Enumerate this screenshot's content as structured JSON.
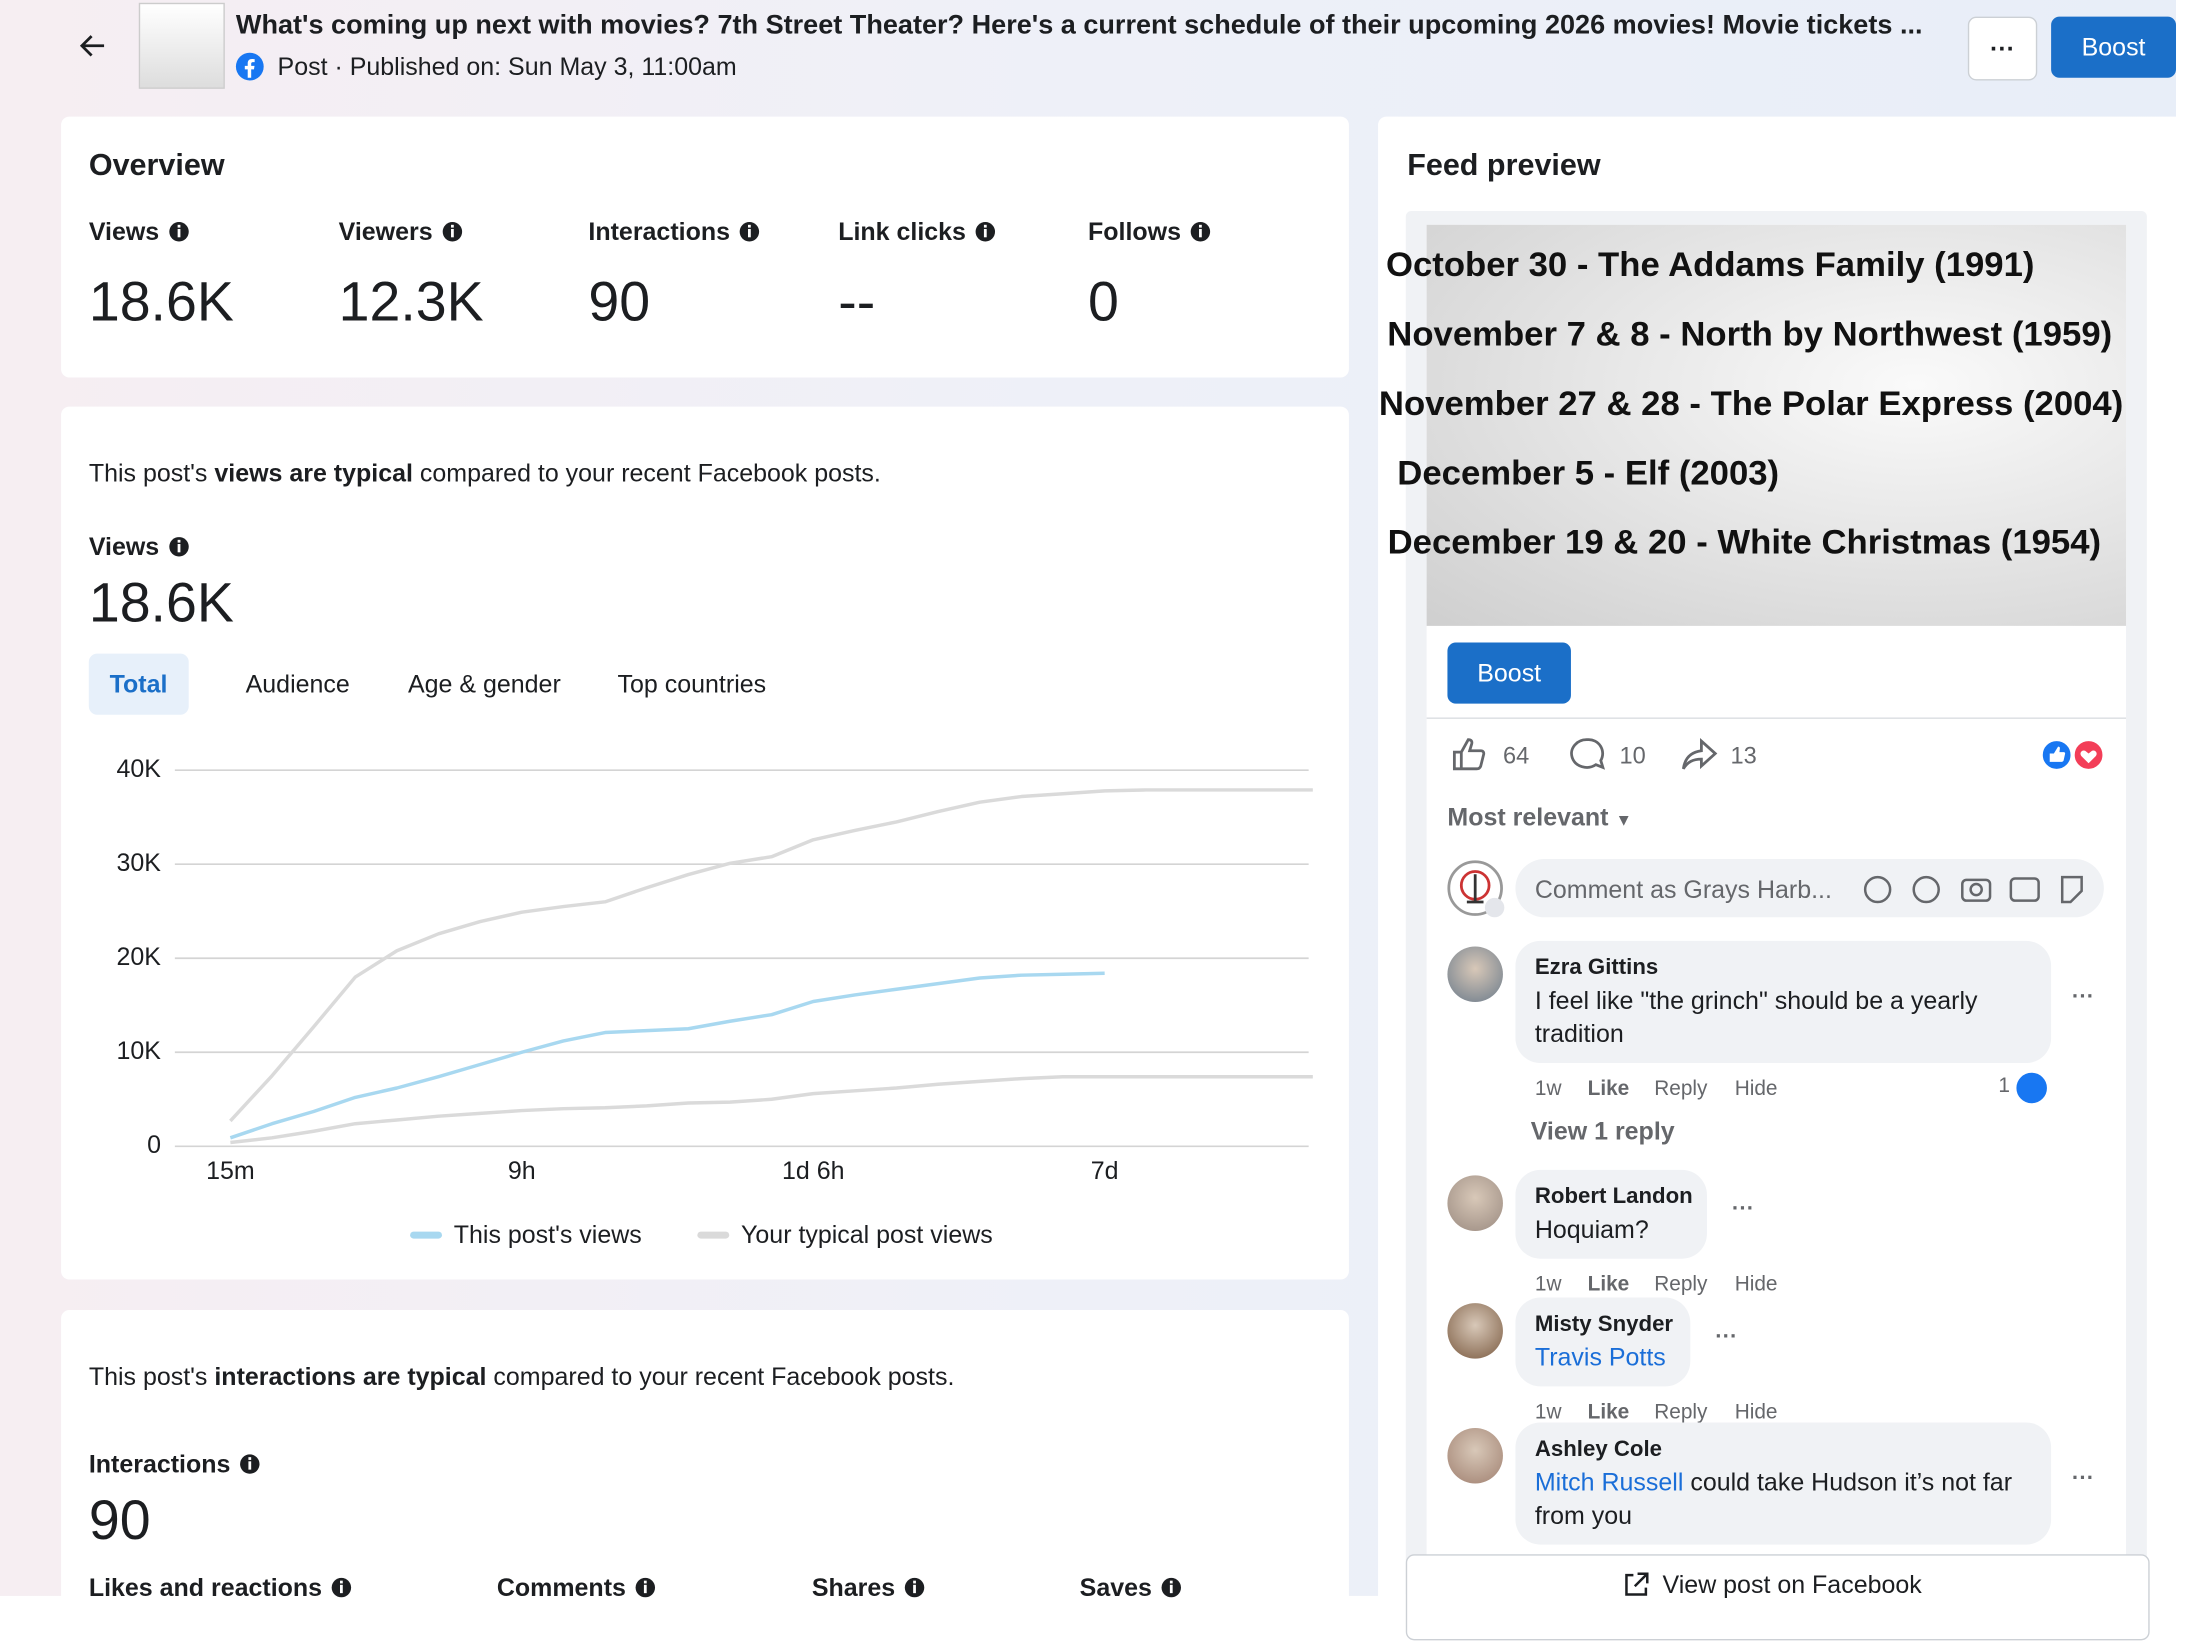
{
  "header": {
    "title": "What's coming up next with movies? 7th Street Theater? Here's a current schedule of their upcoming 2026 movies! Movie tickets ...",
    "subtitle": "Post · Published on: Sun May 3, 11:00am",
    "more": "···",
    "boost": "Boost"
  },
  "overview": {
    "title": "Overview",
    "metrics": [
      {
        "label": "Views",
        "value": "18.6K"
      },
      {
        "label": "Viewers",
        "value": "12.3K"
      },
      {
        "label": "Interactions",
        "value": "90"
      },
      {
        "label": "Link clicks",
        "value": "--"
      },
      {
        "label": "Follows",
        "value": "0"
      }
    ]
  },
  "views_section": {
    "summary": [
      "This post's ",
      "views are typical",
      " compared to your recent Facebook posts."
    ],
    "label": "Views",
    "value": "18.6K",
    "tabs": [
      "Total",
      "Audience",
      "Age & gender",
      "Top countries"
    ]
  },
  "chart_data": {
    "type": "line",
    "categories": [
      "15m",
      null,
      null,
      null,
      null,
      null,
      null,
      "9h",
      null,
      null,
      null,
      null,
      null,
      null,
      "1d 6h",
      null,
      null,
      null,
      null,
      null,
      null,
      "7d",
      null,
      null,
      null,
      null,
      null
    ],
    "series": [
      {
        "name": "This post's views",
        "color": "#a8d8f0",
        "values": [
          900,
          2400,
          3700,
          5200,
          6200,
          7400,
          8700,
          10000,
          11200,
          12100,
          12300,
          12500,
          13300,
          14000,
          15400,
          16100,
          16700,
          17300,
          17900,
          18200,
          18300,
          18400,
          null,
          null,
          null,
          null,
          null
        ]
      },
      {
        "name": "Your typical post views",
        "color": "#dadada",
        "values": [
          2700,
          7500,
          12700,
          18000,
          20800,
          22600,
          23900,
          24900,
          25500,
          26000,
          27500,
          28900,
          30100,
          30800,
          32600,
          33600,
          34500,
          35600,
          36600,
          37200,
          37500,
          37800,
          37900,
          37900,
          37900,
          37900,
          37900
        ],
        "values_low": [
          400,
          900,
          1600,
          2400,
          2800,
          3200,
          3500,
          3800,
          4000,
          4100,
          4300,
          4600,
          4700,
          5000,
          5600,
          5900,
          6200,
          6600,
          6900,
          7200,
          7400,
          7400,
          7400,
          7400,
          7400,
          7400,
          7400
        ]
      }
    ],
    "ylim": [
      0,
      40000
    ],
    "yticks": [
      0,
      {
        "value": 10000,
        "label": "10K"
      },
      {
        "value": 20000,
        "label": "20K"
      },
      {
        "value": 30000,
        "label": "30K"
      },
      {
        "value": 40000,
        "label": "40K"
      }
    ],
    "grid": true
  },
  "interactions_section": {
    "summary": [
      "This post's ",
      "interactions are typical",
      " compared to your recent Facebook posts."
    ],
    "label": "Interactions",
    "value": "90",
    "metrics": [
      "Likes and reactions",
      "Comments",
      "Shares",
      "Saves"
    ]
  },
  "feed_preview": {
    "title": "Feed preview",
    "image_lines": [
      "October 30 - The Addams Family (1991)",
      "November 7 & 8 - North by Northwest (1959)",
      "November 27 & 28 - The Polar Express (2004)",
      "December 5 - Elf (2003)",
      "December 19 & 20 - White Christmas (1954)"
    ],
    "boost": "Boost",
    "likes": "64",
    "comments": "10",
    "shares": "13",
    "sort": "Most relevant",
    "comment_placeholder": "Comment as Grays Harb...",
    "comment_list": [
      {
        "author": "Ezra Gittins",
        "text": "I feel like \"the grinch\" should be a yearly tradition",
        "time": "1w",
        "reactions": "1"
      },
      {
        "author": "Robert Landon",
        "text": "Hoquiam?",
        "time": "1w"
      },
      {
        "author": "Misty Snyder",
        "mention": "Travis Potts",
        "time": "1w"
      },
      {
        "author": "Ashley Cole",
        "mention": "Mitch Russell",
        "text": " could take Hudson it’s not far from you"
      }
    ],
    "actions": [
      "Like",
      "Reply",
      "Hide"
    ],
    "view_replies": "View 1 reply",
    "view_post": "View post on Facebook"
  }
}
